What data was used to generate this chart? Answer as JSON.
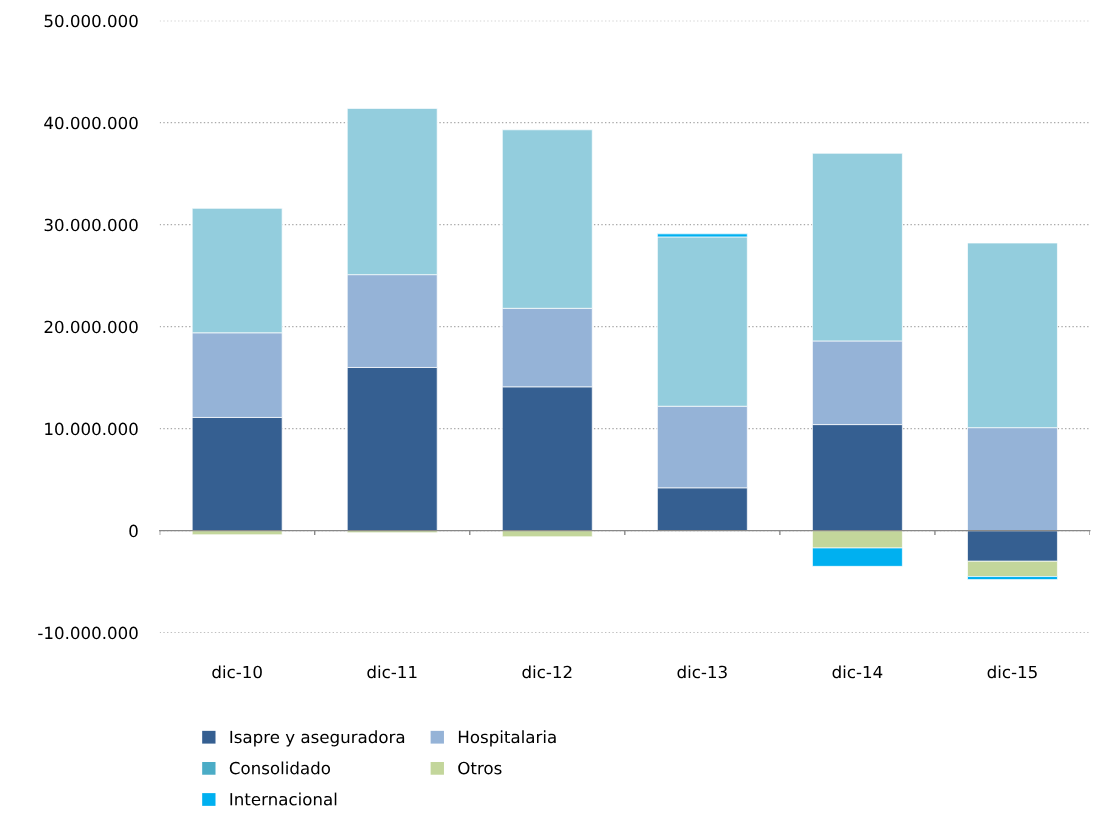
{
  "chart_data": {
    "type": "bar",
    "stacked": true,
    "categories": [
      "dic-10",
      "dic-11",
      "dic-12",
      "dic-13",
      "dic-14",
      "dic-15"
    ],
    "series": [
      {
        "name": "Isapre y aseguradora",
        "color": "#355f91",
        "values": [
          11100000,
          16000000,
          14100000,
          4200000,
          10400000,
          -3000000
        ]
      },
      {
        "name": "Hospitalaria",
        "color": "#95b3d7",
        "values": [
          8300000,
          9100000,
          7700000,
          8000000,
          8200000,
          10100000
        ]
      },
      {
        "color": "#93cddd",
        "values": [
          12200000,
          16300000,
          17500000,
          16600000,
          18400000,
          18100000
        ]
      },
      {
        "name": "Consolidado",
        "color": "#4bacc6",
        "values": [
          null,
          null,
          null,
          null,
          null,
          null
        ]
      },
      {
        "name": "Otros",
        "color": "#c3d69b",
        "values": [
          -400000,
          -200000,
          -600000,
          null,
          -1700000,
          -1500000
        ]
      },
      {
        "name": "Internacional",
        "color": "#00b0f0",
        "values": [
          null,
          null,
          null,
          300000,
          -1800000,
          -300000
        ]
      }
    ],
    "ylim": [
      -10000000,
      50000000
    ],
    "yticks": [
      {
        "value": -10000000,
        "label": "-10.000.000"
      },
      {
        "value": 0,
        "label": "0"
      },
      {
        "value": 10000000,
        "label": "10.000.000"
      },
      {
        "value": 20000000,
        "label": "20.000.000"
      },
      {
        "value": 30000000,
        "label": "30.000.000"
      },
      {
        "value": 40000000,
        "label": "40.000.000"
      },
      {
        "value": 50000000,
        "label": "50.000.000"
      }
    ],
    "grid": "y",
    "legend": "bottom"
  }
}
